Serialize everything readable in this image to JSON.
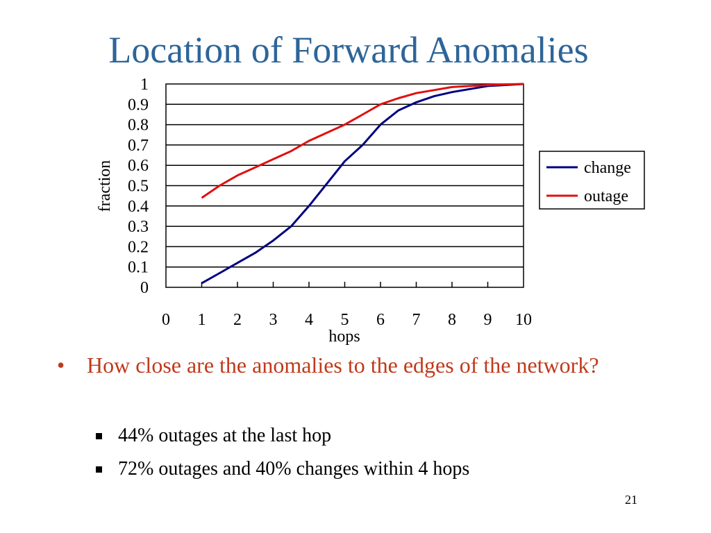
{
  "slide": {
    "title": "Location of Forward Anomalies",
    "page_number": "21"
  },
  "bullets": {
    "main": "How close are the anomalies to the edges of the network?",
    "sub": [
      "44% outages at the last hop",
      "72% outages and 40% changes within 4 hops"
    ]
  },
  "chart_data": {
    "type": "line",
    "title": "",
    "xlabel": "hops",
    "ylabel": "fraction",
    "xlim": [
      0,
      10
    ],
    "ylim": [
      0,
      1
    ],
    "x_ticks": [
      0,
      1,
      2,
      3,
      4,
      5,
      6,
      7,
      8,
      9,
      10
    ],
    "y_ticks": [
      "0",
      "0.1",
      "0.2",
      "0.3",
      "0.4",
      "0.5",
      "0.6",
      "0.7",
      "0.8",
      "0.9",
      "1"
    ],
    "grid": "horizontal",
    "legend_position": "right",
    "series": [
      {
        "name": "change",
        "color": "#000080",
        "x": [
          1,
          1.5,
          2,
          2.5,
          3,
          3.5,
          4,
          4.5,
          5,
          5.5,
          6,
          6.5,
          7,
          7.5,
          8,
          8.5,
          9,
          9.5,
          10
        ],
        "y": [
          0.02,
          0.07,
          0.12,
          0.17,
          0.23,
          0.3,
          0.4,
          0.51,
          0.62,
          0.7,
          0.8,
          0.87,
          0.91,
          0.94,
          0.96,
          0.975,
          0.99,
          0.995,
          1.0
        ]
      },
      {
        "name": "outage",
        "color": "#e01010",
        "x": [
          1,
          1.5,
          2,
          2.5,
          3,
          3.5,
          4,
          4.5,
          5,
          5.5,
          6,
          6.5,
          7,
          7.5,
          8,
          8.5,
          9,
          9.5,
          10
        ],
        "y": [
          0.44,
          0.5,
          0.55,
          0.59,
          0.63,
          0.67,
          0.72,
          0.76,
          0.8,
          0.85,
          0.9,
          0.93,
          0.955,
          0.97,
          0.985,
          0.99,
          0.995,
          0.998,
          1.0
        ]
      }
    ]
  }
}
